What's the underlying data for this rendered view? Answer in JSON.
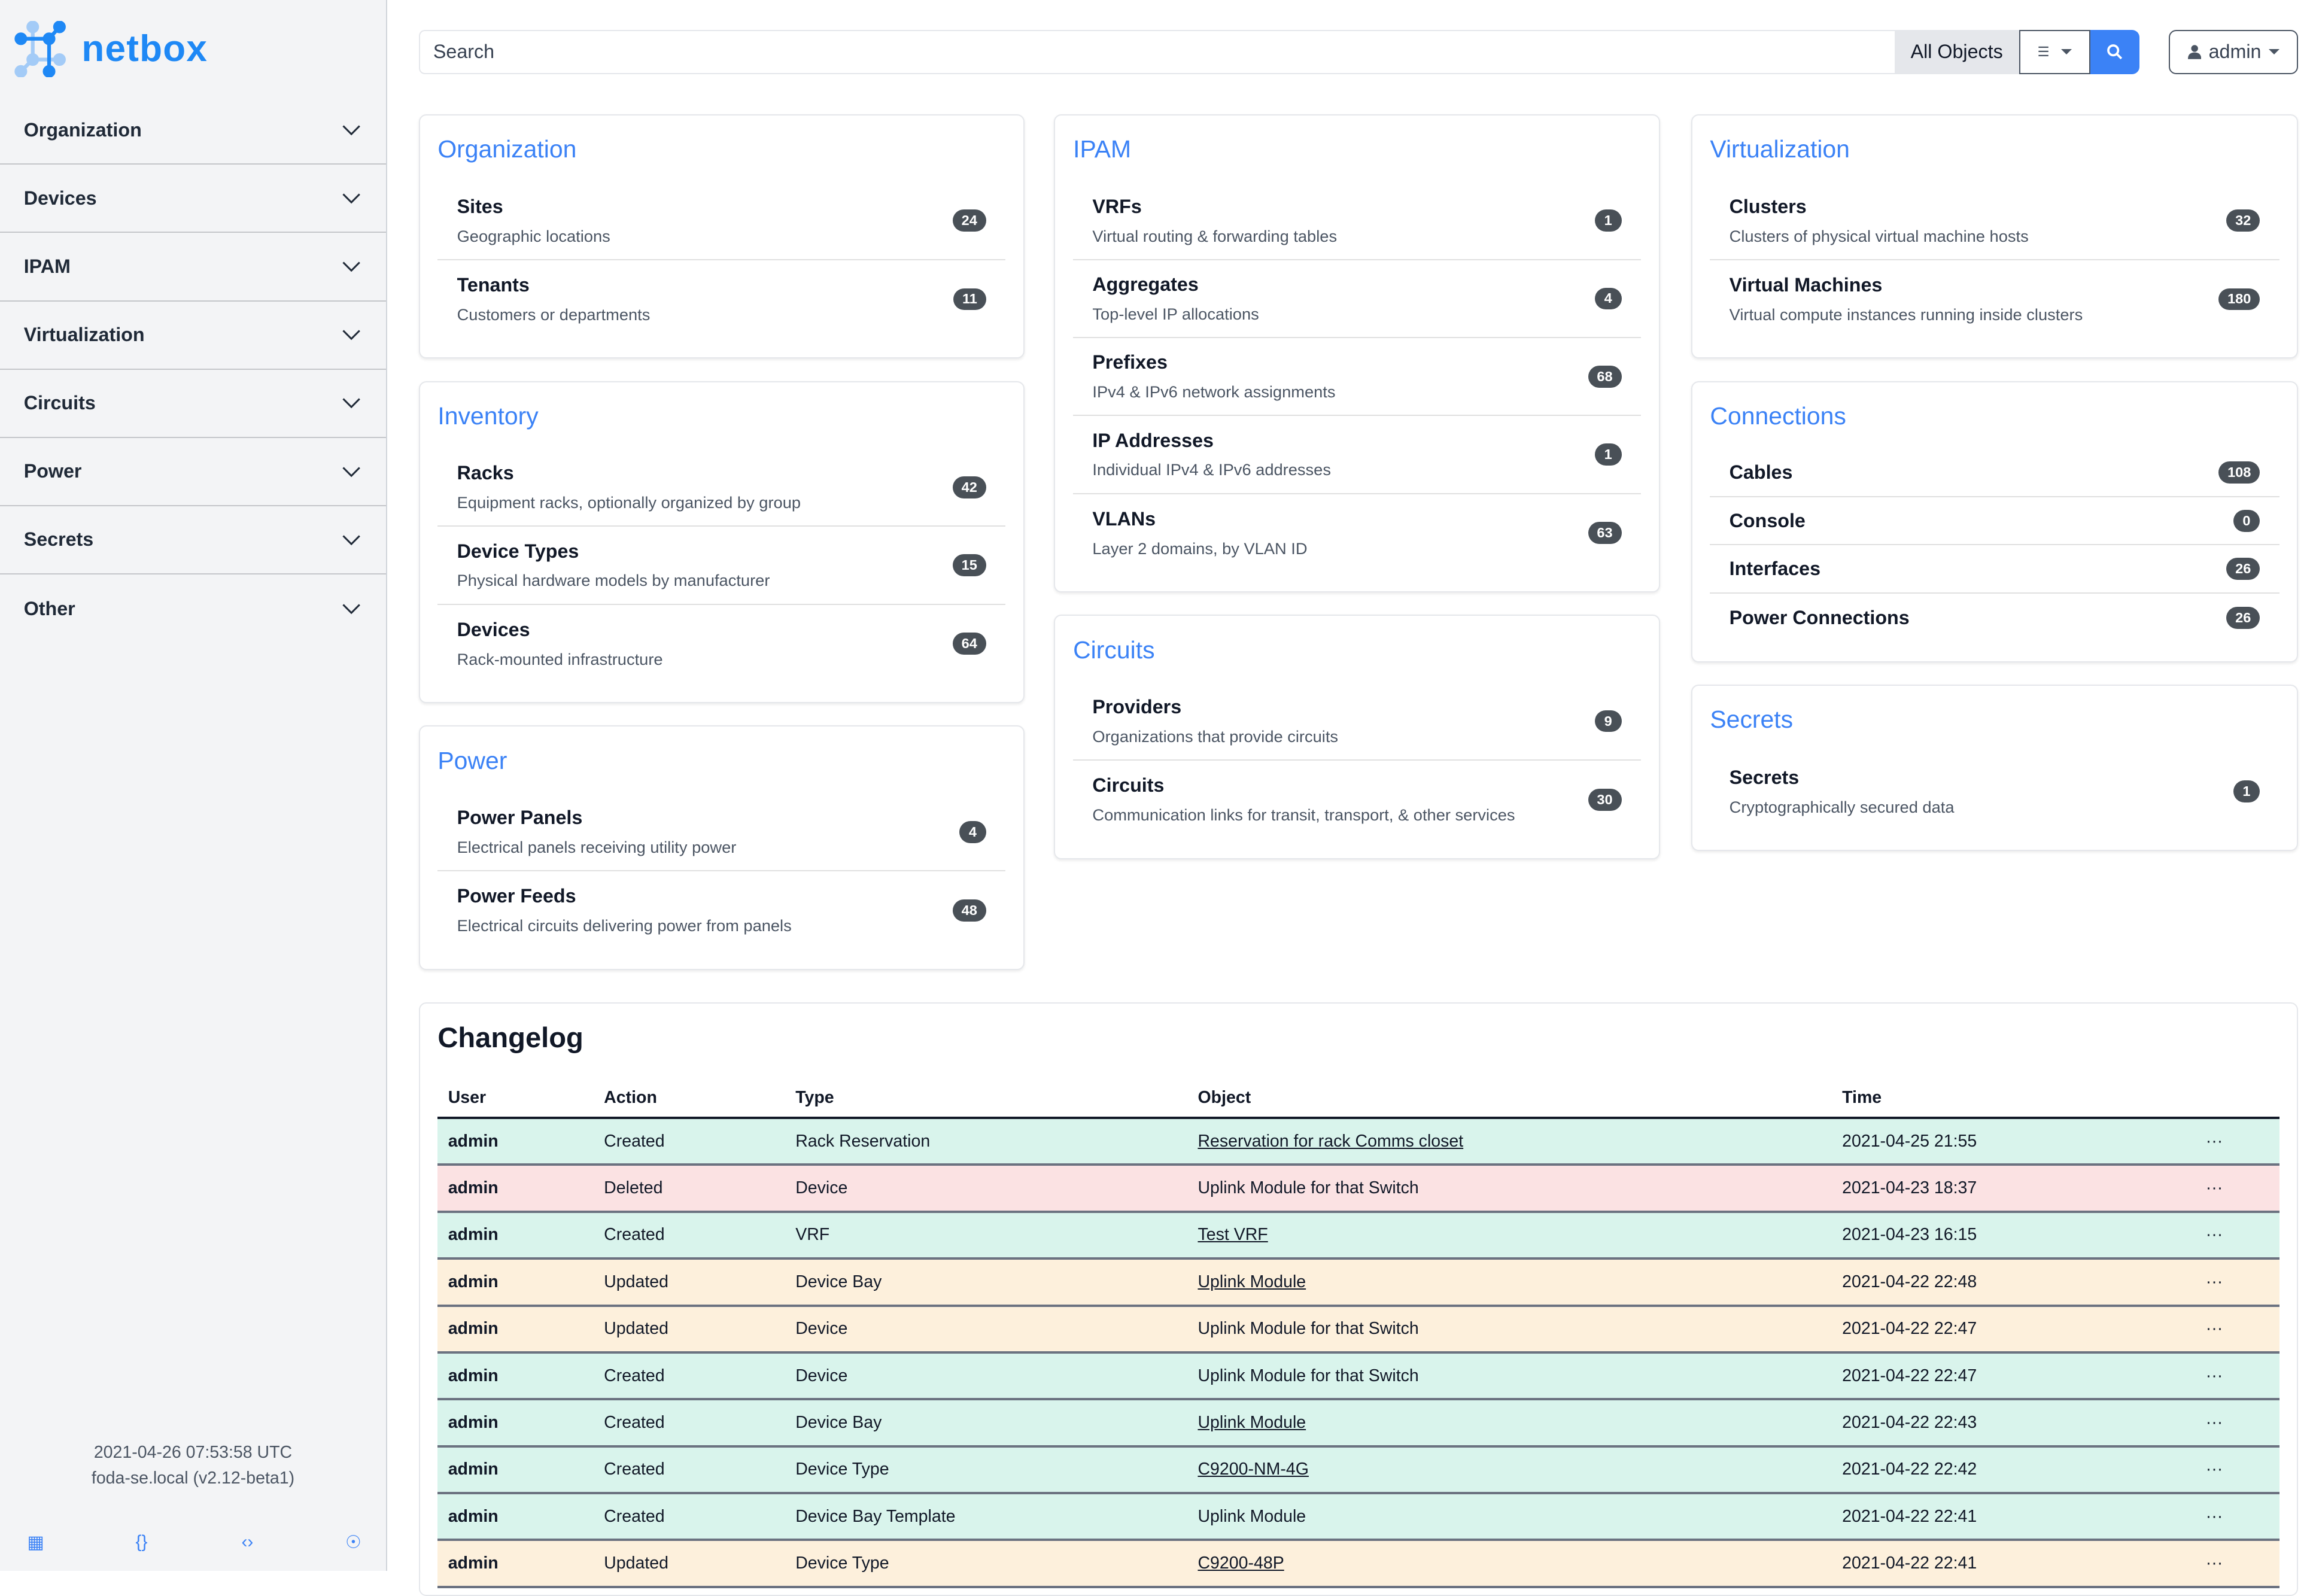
{
  "brand": {
    "name": "netbox",
    "color": "#1e88f5"
  },
  "sidebar": {
    "items": [
      {
        "label": "Organization"
      },
      {
        "label": "Devices"
      },
      {
        "label": "IPAM"
      },
      {
        "label": "Virtualization"
      },
      {
        "label": "Circuits"
      },
      {
        "label": "Power"
      },
      {
        "label": "Secrets"
      },
      {
        "label": "Other"
      }
    ],
    "footer": {
      "time": "2021-04-26 07:53:58 UTC",
      "host": "foda-se.local (v2.12-beta1)"
    },
    "icons": [
      "book-icon",
      "braces-icon",
      "code-icon",
      "lifebuoy-icon"
    ]
  },
  "search": {
    "placeholder": "Search",
    "scope": "All Objects"
  },
  "user": {
    "label": "admin"
  },
  "columns": [
    [
      {
        "title": "Organization",
        "items": [
          {
            "t": "Sites",
            "d": "Geographic locations",
            "n": "24"
          },
          {
            "t": "Tenants",
            "d": "Customers or departments",
            "n": "11"
          }
        ]
      },
      {
        "title": "Inventory",
        "items": [
          {
            "t": "Racks",
            "d": "Equipment racks, optionally organized by group",
            "n": "42"
          },
          {
            "t": "Device Types",
            "d": "Physical hardware models by manufacturer",
            "n": "15"
          },
          {
            "t": "Devices",
            "d": "Rack-mounted infrastructure",
            "n": "64"
          }
        ]
      },
      {
        "title": "Power",
        "items": [
          {
            "t": "Power Panels",
            "d": "Electrical panels receiving utility power",
            "n": "4"
          },
          {
            "t": "Power Feeds",
            "d": "Electrical circuits delivering power from panels",
            "n": "48"
          }
        ]
      }
    ],
    [
      {
        "title": "IPAM",
        "items": [
          {
            "t": "VRFs",
            "d": "Virtual routing & forwarding tables",
            "n": "1"
          },
          {
            "t": "Aggregates",
            "d": "Top-level IP allocations",
            "n": "4"
          },
          {
            "t": "Prefixes",
            "d": "IPv4 & IPv6 network assignments",
            "n": "68"
          },
          {
            "t": "IP Addresses",
            "d": "Individual IPv4 & IPv6 addresses",
            "n": "1"
          },
          {
            "t": "VLANs",
            "d": "Layer 2 domains, by VLAN ID",
            "n": "63"
          }
        ]
      },
      {
        "title": "Circuits",
        "items": [
          {
            "t": "Providers",
            "d": "Organizations that provide circuits",
            "n": "9"
          },
          {
            "t": "Circuits",
            "d": "Communication links for transit, transport, & other services",
            "n": "30"
          }
        ]
      }
    ],
    [
      {
        "title": "Virtualization",
        "items": [
          {
            "t": "Clusters",
            "d": "Clusters of physical virtual machine hosts",
            "n": "32"
          },
          {
            "t": "Virtual Machines",
            "d": "Virtual compute instances running inside clusters",
            "n": "180"
          }
        ]
      },
      {
        "title": "Connections",
        "items": [
          {
            "t": "Cables",
            "n": "108"
          },
          {
            "t": "Console",
            "n": "0"
          },
          {
            "t": "Interfaces",
            "n": "26"
          },
          {
            "t": "Power Connections",
            "n": "26"
          }
        ]
      },
      {
        "title": "Secrets",
        "items": [
          {
            "t": "Secrets",
            "d": "Cryptographically secured data",
            "n": "1"
          }
        ]
      }
    ]
  ],
  "changelog": {
    "title": "Changelog",
    "headers": [
      "User",
      "Action",
      "Type",
      "Object",
      "Time"
    ],
    "rows": [
      {
        "user": "admin",
        "action": "Created",
        "type": "Rack Reservation",
        "object": "Reservation for rack Comms closet",
        "link": true,
        "time": "2021-04-25 21:55"
      },
      {
        "user": "admin",
        "action": "Deleted",
        "type": "Device",
        "object": "Uplink Module for that Switch",
        "link": false,
        "time": "2021-04-23 18:37"
      },
      {
        "user": "admin",
        "action": "Created",
        "type": "VRF",
        "object": "Test VRF",
        "link": true,
        "time": "2021-04-23 16:15"
      },
      {
        "user": "admin",
        "action": "Updated",
        "type": "Device Bay",
        "object": "Uplink Module",
        "link": true,
        "time": "2021-04-22 22:48"
      },
      {
        "user": "admin",
        "action": "Updated",
        "type": "Device",
        "object": "Uplink Module for that Switch",
        "link": false,
        "time": "2021-04-22 22:47"
      },
      {
        "user": "admin",
        "action": "Created",
        "type": "Device",
        "object": "Uplink Module for that Switch",
        "link": false,
        "time": "2021-04-22 22:47"
      },
      {
        "user": "admin",
        "action": "Created",
        "type": "Device Bay",
        "object": "Uplink Module",
        "link": true,
        "time": "2021-04-22 22:43"
      },
      {
        "user": "admin",
        "action": "Created",
        "type": "Device Type",
        "object": "C9200-NM-4G",
        "link": true,
        "time": "2021-04-22 22:42"
      },
      {
        "user": "admin",
        "action": "Created",
        "type": "Device Bay Template",
        "object": "Uplink Module",
        "link": false,
        "time": "2021-04-22 22:41"
      },
      {
        "user": "admin",
        "action": "Updated",
        "type": "Device Type",
        "object": "C9200-48P",
        "link": true,
        "time": "2021-04-22 22:41"
      }
    ],
    "row_colors": {
      "Created": "#d9f4ec",
      "Deleted": "#fbe2e3",
      "Updated": "#fdf0dc"
    }
  }
}
